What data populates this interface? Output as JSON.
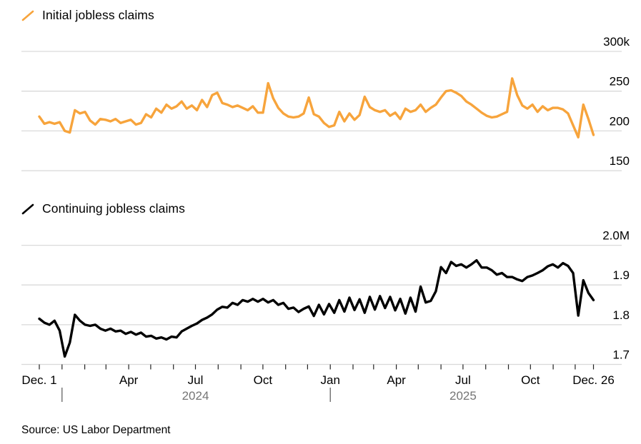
{
  "legend": {
    "initial_label": "Initial jobless claims",
    "continuing_label": "Continuing jobless claims"
  },
  "source": {
    "text": "Source: US Labor Department"
  },
  "colors": {
    "initial_line": "#F7A43C",
    "continuing_line": "#000000",
    "grid": "#D9D9D9",
    "month_tick": "#222222",
    "year_tick": "#555555",
    "year_text": "#757575",
    "label_text": "#000000"
  },
  "chart_data": [
    {
      "type": "line",
      "series_name": "Initial jobless claims",
      "unit": "thousands of claims",
      "color": "#F7A43C",
      "ylim": [
        150,
        300
      ],
      "grid": true,
      "legend_position": "top-left",
      "y_ticks": [
        {
          "value": 300,
          "label": "300k"
        },
        {
          "value": 250,
          "label": "250"
        },
        {
          "value": 200,
          "label": "200"
        },
        {
          "value": 150,
          "label": "150"
        }
      ],
      "values": [
        218,
        209,
        211,
        209,
        211,
        200,
        198,
        226,
        222,
        224,
        213,
        208,
        215,
        214,
        212,
        215,
        210,
        212,
        214,
        208,
        210,
        221,
        217,
        228,
        223,
        233,
        228,
        231,
        237,
        228,
        232,
        226,
        239,
        230,
        245,
        248,
        235,
        233,
        230,
        232,
        229,
        226,
        231,
        223,
        223,
        260,
        241,
        229,
        222,
        218,
        217,
        218,
        222,
        242,
        221,
        218,
        210,
        205,
        207,
        224,
        212,
        222,
        214,
        220,
        243,
        230,
        226,
        224,
        226,
        219,
        223,
        215,
        228,
        224,
        226,
        233,
        224,
        229,
        233,
        242,
        250,
        251,
        248,
        244,
        237,
        233,
        228,
        223,
        219,
        217,
        218,
        221,
        224,
        266,
        245,
        232,
        228,
        233,
        224,
        231,
        226,
        229,
        229,
        227,
        222,
        207,
        192,
        233,
        215,
        195
      ]
    },
    {
      "type": "line",
      "series_name": "Continuing jobless claims",
      "unit": "millions of claims",
      "color": "#000000",
      "ylim": [
        1.7,
        2.0
      ],
      "grid": true,
      "legend_position": "top-left",
      "y_ticks": [
        {
          "value": 2.0,
          "label": "2.0M"
        },
        {
          "value": 1.9,
          "label": "1.9"
        },
        {
          "value": 1.8,
          "label": "1.8"
        },
        {
          "value": 1.7,
          "label": "1.7"
        }
      ],
      "values": [
        1.815,
        1.805,
        1.8,
        1.81,
        1.785,
        1.72,
        1.755,
        1.825,
        1.81,
        1.8,
        1.797,
        1.8,
        1.79,
        1.785,
        1.79,
        1.783,
        1.785,
        1.777,
        1.782,
        1.775,
        1.78,
        1.77,
        1.772,
        1.765,
        1.768,
        1.763,
        1.77,
        1.768,
        1.783,
        1.79,
        1.797,
        1.803,
        1.812,
        1.818,
        1.826,
        1.838,
        1.845,
        1.843,
        1.855,
        1.85,
        1.862,
        1.858,
        1.865,
        1.858,
        1.865,
        1.856,
        1.862,
        1.85,
        1.855,
        1.84,
        1.843,
        1.832,
        1.84,
        1.846,
        1.822,
        1.85,
        1.826,
        1.852,
        1.83,
        1.862,
        1.833,
        1.868,
        1.837,
        1.864,
        1.83,
        1.87,
        1.838,
        1.872,
        1.842,
        1.87,
        1.836,
        1.865,
        1.828,
        1.868,
        1.833,
        1.896,
        1.856,
        1.86,
        1.884,
        1.945,
        1.93,
        1.958,
        1.948,
        1.952,
        1.944,
        1.952,
        1.962,
        1.944,
        1.944,
        1.937,
        1.926,
        1.93,
        1.92,
        1.92,
        1.914,
        1.91,
        1.92,
        1.924,
        1.93,
        1.937,
        1.947,
        1.952,
        1.944,
        1.955,
        1.948,
        1.93,
        1.823,
        1.912,
        1.88,
        1.862
      ]
    }
  ],
  "x_axis": {
    "total_days": 756,
    "start_label": "Dec. 1",
    "end_label": "Dec. 26",
    "major_ticks": [
      {
        "label": "Dec. 1",
        "day": 0
      },
      {
        "label": "Apr",
        "day": 122
      },
      {
        "label": "Jul",
        "day": 213
      },
      {
        "label": "Oct",
        "day": 305
      },
      {
        "label": "Jan",
        "day": 397
      },
      {
        "label": "Apr",
        "day": 487
      },
      {
        "label": "Jul",
        "day": 578
      },
      {
        "label": "Oct",
        "day": 670
      },
      {
        "label": "Dec. 26",
        "day": 756
      }
    ],
    "minor_tick_days": [
      0,
      31,
      62,
      91,
      122,
      152,
      183,
      213,
      244,
      275,
      305,
      336,
      366,
      397,
      428,
      456,
      487,
      517,
      548,
      578,
      609,
      640,
      670,
      701,
      731,
      756
    ],
    "year_ticks": [
      {
        "day": 31
      },
      {
        "day": 397
      }
    ],
    "years": [
      {
        "label": "2024",
        "day": 213
      },
      {
        "label": "2025",
        "day": 578
      }
    ]
  }
}
